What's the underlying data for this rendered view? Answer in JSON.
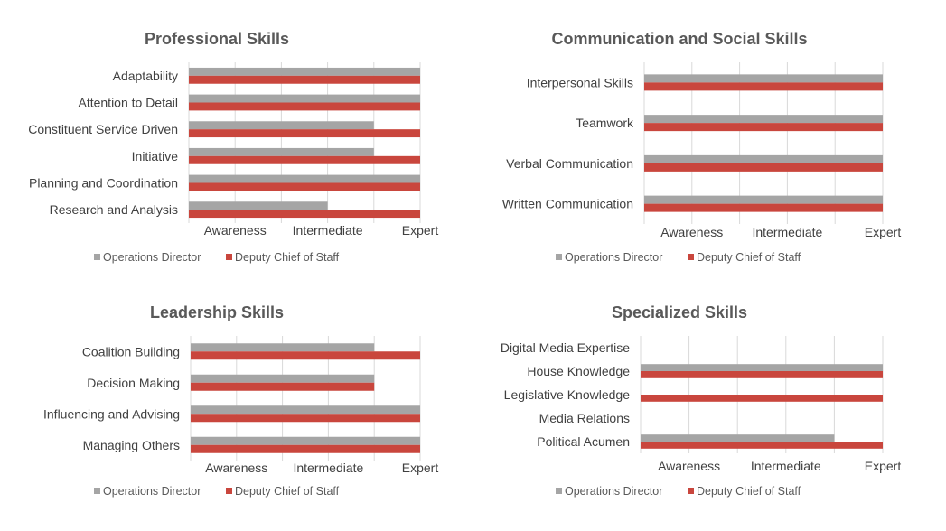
{
  "colors": {
    "operations_director": "#a5a5a5",
    "deputy_chief_of_staff": "#c9463d",
    "grid": "#d9d9d9",
    "title": "#595959",
    "label": "#404040",
    "legend_text": "#595959"
  },
  "chart_data": [
    {
      "type": "bar",
      "orientation": "horizontal",
      "title": "Professional Skills",
      "categories": [
        "Adaptability",
        "Attention to Detail",
        "Constituent Service Driven",
        "Initiative",
        "Planning and Coordination",
        "Research and Analysis"
      ],
      "series": [
        {
          "name": "Operations Director",
          "values": [
            3,
            3,
            2.5,
            2.5,
            3,
            2
          ]
        },
        {
          "name": "Deputy Chief of Staff",
          "values": [
            3,
            3,
            3,
            3,
            3,
            3
          ]
        }
      ],
      "xlim": [
        0.5,
        3
      ],
      "xticks": [
        {
          "value": 1,
          "label": "Awareness"
        },
        {
          "value": 2,
          "label": "Intermediate"
        },
        {
          "value": 3,
          "label": "Expert"
        }
      ],
      "grid": true,
      "legend": "bottom"
    },
    {
      "type": "bar",
      "orientation": "horizontal",
      "title": "Communication and Social Skills",
      "categories": [
        "Interpersonal Skills",
        "Teamwork",
        "Verbal Communication",
        "Written Communication"
      ],
      "series": [
        {
          "name": "Operations Director",
          "values": [
            3,
            3,
            3,
            3
          ]
        },
        {
          "name": "Deputy Chief of Staff",
          "values": [
            3,
            3,
            3,
            3
          ]
        }
      ],
      "xlim": [
        0.5,
        3
      ],
      "xticks": [
        {
          "value": 1,
          "label": "Awareness"
        },
        {
          "value": 2,
          "label": "Intermediate"
        },
        {
          "value": 3,
          "label": "Expert"
        }
      ],
      "grid": true,
      "legend": "bottom"
    },
    {
      "type": "bar",
      "orientation": "horizontal",
      "title": "Leadership Skills",
      "categories": [
        "Coalition Building",
        "Decision Making",
        "Influencing and Advising",
        "Managing Others"
      ],
      "series": [
        {
          "name": "Operations Director",
          "values": [
            2.5,
            2.5,
            3,
            3
          ]
        },
        {
          "name": "Deputy Chief of Staff",
          "values": [
            3,
            2.5,
            3,
            3
          ]
        }
      ],
      "xlim": [
        0.5,
        3
      ],
      "xticks": [
        {
          "value": 1,
          "label": "Awareness"
        },
        {
          "value": 2,
          "label": "Intermediate"
        },
        {
          "value": 3,
          "label": "Expert"
        }
      ],
      "grid": true,
      "legend": "bottom"
    },
    {
      "type": "bar",
      "orientation": "horizontal",
      "title": "Specialized Skills",
      "categories": [
        "Digital Media Expertise",
        "House Knowledge",
        "Legislative Knowledge",
        "Media Relations",
        "Political Acumen"
      ],
      "series": [
        {
          "name": "Operations Director",
          "values": [
            0,
            3,
            0,
            0,
            2.5
          ]
        },
        {
          "name": "Deputy Chief of Staff",
          "values": [
            0,
            3,
            3,
            0,
            3
          ]
        }
      ],
      "xlim": [
        0.5,
        3
      ],
      "xticks": [
        {
          "value": 1,
          "label": "Awareness"
        },
        {
          "value": 2,
          "label": "Intermediate"
        },
        {
          "value": 3,
          "label": "Expert"
        }
      ],
      "grid": true,
      "legend": "bottom"
    }
  ]
}
